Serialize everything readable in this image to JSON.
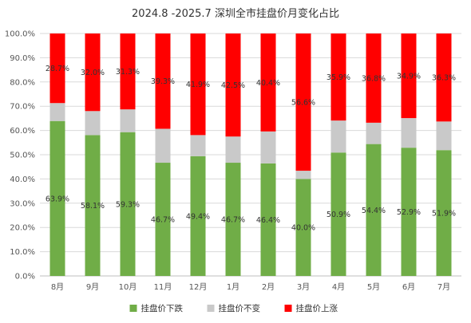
{
  "chart_data": {
    "type": "bar",
    "stacked": true,
    "title": "2024.8 -2025.7 深圳全市挂盘价月变化占比",
    "categories": [
      "8月",
      "9月",
      "10月",
      "11月",
      "12月",
      "1月",
      "2月",
      "3月",
      "4月",
      "5月",
      "6月",
      "7月"
    ],
    "series": [
      {
        "name": "挂盘价下跌",
        "color": "#70ad47",
        "values": [
          63.9,
          58.1,
          59.3,
          46.7,
          49.4,
          46.7,
          46.4,
          40.0,
          50.9,
          54.4,
          52.9,
          51.9
        ],
        "labels": [
          "63.9%",
          "58.1%",
          "59.3%",
          "46.7%",
          "49.4%",
          "46.7%",
          "46.4%",
          "40.0%",
          "50.9%",
          "54.4%",
          "52.9%",
          "51.9%"
        ]
      },
      {
        "name": "挂盘价不变",
        "color": "#c9c9c9",
        "values": [
          7.4,
          9.9,
          9.4,
          14.0,
          8.7,
          10.8,
          13.2,
          3.4,
          13.2,
          8.8,
          12.2,
          11.8
        ],
        "labels": [
          "",
          "",
          "",
          "",
          "",
          "",
          "",
          "",
          "",
          "",
          "",
          ""
        ]
      },
      {
        "name": "挂盘价上涨",
        "color": "#ff0000",
        "values": [
          28.7,
          32.0,
          31.3,
          39.3,
          41.9,
          42.5,
          40.4,
          56.6,
          35.9,
          36.8,
          34.9,
          36.3
        ],
        "labels": [
          "28.7%",
          "32.0%",
          "31.3%",
          "39.3%",
          "41.9%",
          "42.5%",
          "40.4%",
          "56.6%",
          "35.9%",
          "36.8%",
          "34.9%",
          "36.3%"
        ]
      }
    ],
    "ylim": [
      0,
      100
    ],
    "yticks": [
      "0.0%",
      "10.0%",
      "20.0%",
      "30.0%",
      "40.0%",
      "50.0%",
      "60.0%",
      "70.0%",
      "80.0%",
      "90.0%",
      "100.0%"
    ],
    "grid": true,
    "legend_position": "bottom"
  }
}
